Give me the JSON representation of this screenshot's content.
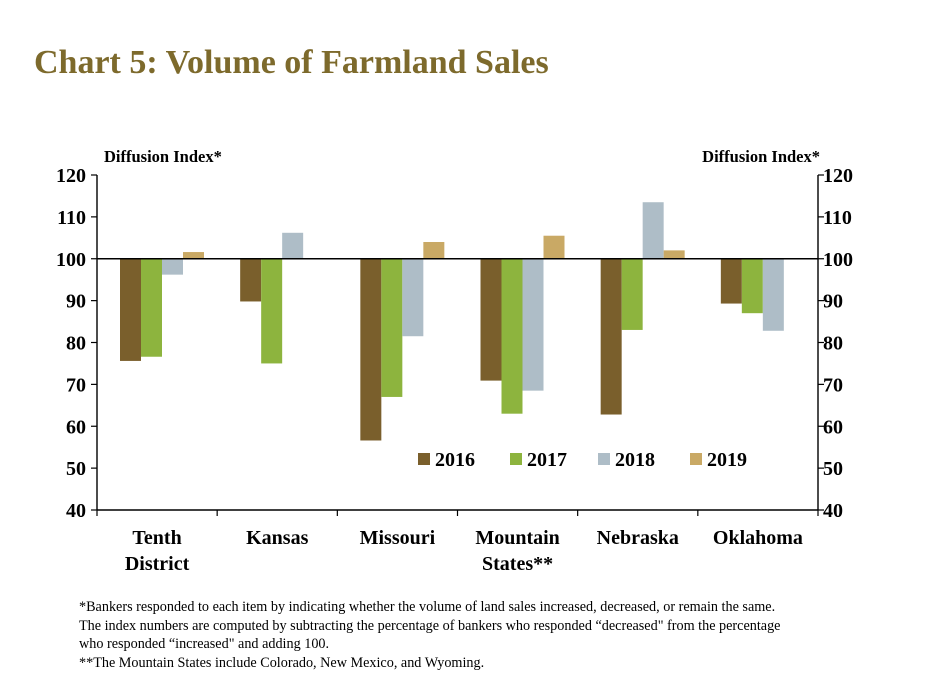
{
  "title": "Chart 5: Volume of Farmland Sales",
  "chart_data": {
    "type": "bar",
    "title": "Chart 5: Volume of Farmland Sales",
    "ylabel_left": "Diffusion Index*",
    "ylabel_right": "Diffusion Index*",
    "ylim": [
      40,
      120
    ],
    "yticks": [
      40,
      50,
      60,
      70,
      80,
      90,
      100,
      110,
      120
    ],
    "baseline": 100,
    "grid": false,
    "legend_position": "inside-bottom",
    "categories": [
      [
        "Tenth",
        "District"
      ],
      [
        "Kansas"
      ],
      [
        "Missouri"
      ],
      [
        "Mountain",
        "States**"
      ],
      [
        "Nebraska"
      ],
      [
        "Oklahoma"
      ]
    ],
    "series": [
      {
        "name": "2016",
        "color": "#7a5f2c",
        "values": [
          75.6,
          89.8,
          56.6,
          70.9,
          62.8,
          89.3
        ]
      },
      {
        "name": "2017",
        "color": "#8db43e",
        "values": [
          76.6,
          75.0,
          67.0,
          63.0,
          83.0,
          87.0
        ]
      },
      {
        "name": "2018",
        "color": "#aebdc7",
        "values": [
          96.2,
          106.2,
          81.5,
          68.5,
          113.5,
          82.8
        ]
      },
      {
        "name": "2019",
        "color": "#c9a965",
        "values": [
          101.6,
          null,
          104.0,
          105.5,
          102.0,
          null
        ]
      }
    ]
  },
  "footnotes": [
    "*Bankers responded to each item by indicating whether the volume of land sales increased, decreased, or remain the same.",
    "The index numbers are computed by subtracting the percentage of bankers who responded “decreased\" from the percentage",
    "who responded “increased\" and adding 100.",
    "**The Mountain States include Colorado, New Mexico, and Wyoming."
  ]
}
